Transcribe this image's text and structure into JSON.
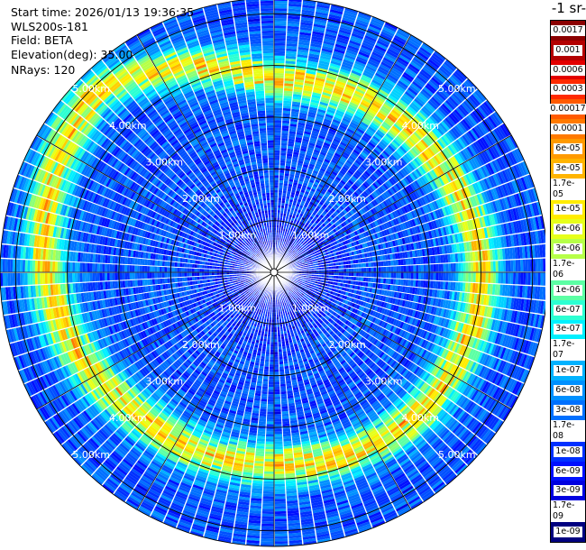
{
  "header": {
    "start_time": "Start time: 2026/01/13 19:36:35",
    "instrument": "WLS200s-181",
    "field": "Field: BETA",
    "elevation": "Elevation(deg): 35.00",
    "nrays": "NRays: 120"
  },
  "colorbar": {
    "unit_title": "-1 sr-",
    "ticks": [
      "0.0017",
      "0.001",
      "0.0006",
      "0.0003",
      "0.00017",
      "0.0001",
      "6e-05",
      "3e-05",
      "1.7e-05",
      "1e-05",
      "6e-06",
      "3e-06",
      "1.7e-06",
      "1e-06",
      "6e-07",
      "3e-07",
      "1.7e-07",
      "1e-07",
      "6e-08",
      "3e-08",
      "1.7e-08",
      "1e-08",
      "6e-09",
      "3e-09",
      "1.7e-09",
      "1e-09"
    ],
    "colors": [
      "#8b0000",
      "#b30000",
      "#e30000",
      "#ff2a00",
      "#ff5a00",
      "#ff7a00",
      "#ff9a00",
      "#ffb400",
      "#ffd000",
      "#ffec00",
      "#e6ff1a",
      "#b6ff48",
      "#8aff76",
      "#5cffa4",
      "#2cffd2",
      "#00f0ff",
      "#00d2ff",
      "#00b2ff",
      "#0090ff",
      "#0070ff",
      "#0050ff",
      "#0030ff",
      "#0010ff",
      "#0000e0",
      "#0000b0",
      "#000080"
    ]
  },
  "chart_data": {
    "type": "ppi_polar",
    "field": "BETA",
    "elevation_deg": 35.0,
    "nrays": 120,
    "range_max_km": 5.3,
    "range_rings_km": [
      1.0,
      2.0,
      3.0,
      4.0,
      5.0
    ],
    "ring_labels": [
      "1.00km",
      "2.00km",
      "3.00km",
      "4.00km",
      "5.00km"
    ],
    "radial_lines_deg": [
      0,
      30,
      60,
      90,
      120,
      150,
      180,
      210,
      240,
      270,
      300,
      330
    ],
    "color_scale": "log10",
    "value_range": [
      1e-09,
      0.0017
    ],
    "background_beta": 2e-08,
    "aerosol_ring": {
      "description": "enhanced backscatter band",
      "peak_beta": 1e-05,
      "ring_radius_km_by_azimuth": [
        {
          "azimuth_deg": 0,
          "radius_km": 3.7
        },
        {
          "azimuth_deg": 45,
          "radius_km": 3.8
        },
        {
          "azimuth_deg": 90,
          "radius_km": 4.0
        },
        {
          "azimuth_deg": 135,
          "radius_km": 3.9
        },
        {
          "azimuth_deg": 180,
          "radius_km": 3.7
        },
        {
          "azimuth_deg": 225,
          "radius_km": 3.8
        },
        {
          "azimuth_deg": 270,
          "radius_km": 4.4
        },
        {
          "azimuth_deg": 315,
          "radius_km": 4.9
        }
      ]
    }
  }
}
